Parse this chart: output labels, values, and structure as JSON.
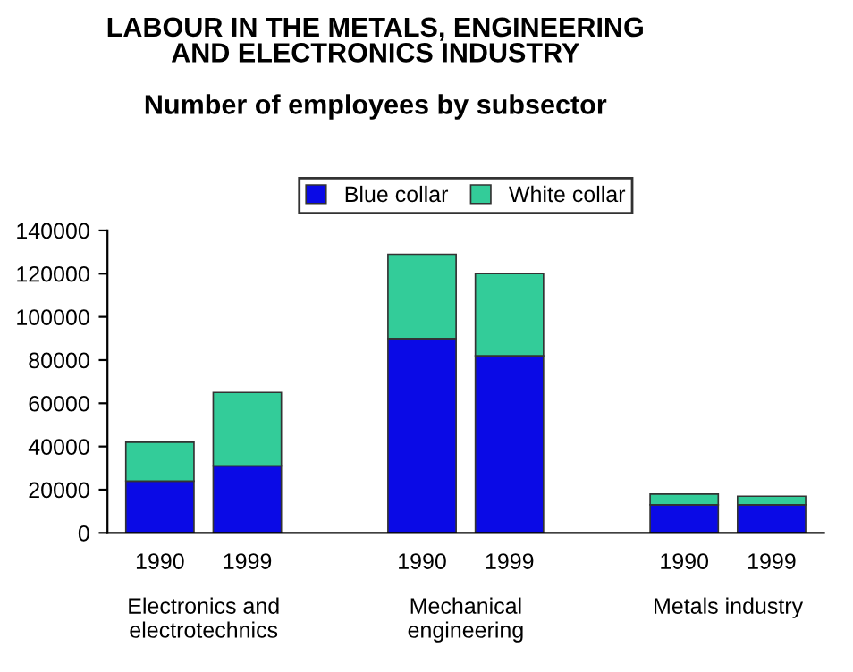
{
  "chart_data": {
    "type": "bar",
    "stacked": true,
    "title": "LABOUR IN THE METALS, ENGINEERING\nAND ELECTRONICS INDUSTRY",
    "subtitle": "Number of employees by subsector",
    "categories": [
      "1990",
      "1999",
      null,
      "1990",
      "1999",
      null,
      "1990",
      "1999"
    ],
    "series": [
      {
        "name": "Blue collar",
        "color": "#0a0ae6",
        "values": [
          24000,
          31000,
          null,
          90000,
          82000,
          null,
          13000,
          13000
        ]
      },
      {
        "name": "White collar",
        "color": "#33cc99",
        "values": [
          18000,
          34000,
          null,
          39000,
          38000,
          null,
          5000,
          4000
        ]
      }
    ],
    "annotations": [
      "Electronics and\nelectrotechnics",
      "Mechanical\nengineering",
      "Metals industry"
    ],
    "ylim": [
      0,
      140000
    ],
    "yticks": [
      0,
      20000,
      40000,
      60000,
      80000,
      100000,
      120000,
      140000
    ],
    "grid": false,
    "legend": "top"
  }
}
